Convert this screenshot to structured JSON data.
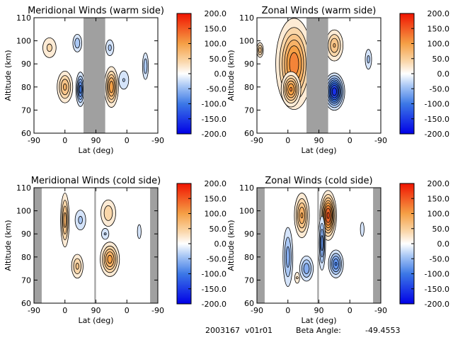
{
  "footer": {
    "id_text": "2003167  v01r01",
    "beta_label": "Beta Angle:",
    "beta_value": "-49.4553"
  },
  "chart_data": [
    {
      "type": "contour",
      "title": "Meridional Winds (warm side)",
      "xlabel": "Lat (deg)",
      "ylabel": "Altitude (km)",
      "x_ticks": [
        "-90",
        "0",
        "90",
        "0",
        "-90"
      ],
      "y_ticks": [
        "60",
        "70",
        "80",
        "90",
        "100",
        "110"
      ],
      "ylim": [
        60,
        110
      ],
      "gap": {
        "from_tick": 1.6,
        "to_tick": 2.3
      },
      "edge_gaps": [],
      "colorbar": {
        "min": -200,
        "max": 200,
        "ticks": [
          "200.0",
          "150.0",
          "100.0",
          "50.0",
          "0.0",
          "-50.0",
          "-100.0",
          "-150.0",
          "-200.0"
        ]
      },
      "cells": [
        {
          "x_tick": 0.5,
          "alt": 97,
          "amp": 45,
          "wx": 0.25,
          "wy": 5
        },
        {
          "x_tick": 1.0,
          "alt": 80,
          "amp": 85,
          "wx": 0.22,
          "wy": 6
        },
        {
          "x_tick": 1.5,
          "alt": 79,
          "amp": -110,
          "wx": 0.12,
          "wy": 6
        },
        {
          "x_tick": 1.4,
          "alt": 99,
          "amp": -55,
          "wx": 0.15,
          "wy": 4
        },
        {
          "x_tick": 2.5,
          "alt": 80,
          "amp": 115,
          "wx": 0.18,
          "wy": 7
        },
        {
          "x_tick": 2.45,
          "alt": 97,
          "amp": -45,
          "wx": 0.15,
          "wy": 4
        },
        {
          "x_tick": 2.9,
          "alt": 83,
          "amp": -40,
          "wx": 0.2,
          "wy": 5
        },
        {
          "x_tick": 3.6,
          "alt": 89,
          "amp": -55,
          "wx": 0.1,
          "wy": 6
        }
      ]
    },
    {
      "type": "contour",
      "title": "Zonal Winds (warm side)",
      "xlabel": "Lat (deg)",
      "ylabel": "Altitude (km)",
      "x_ticks": [
        "-90",
        "0",
        "90",
        "0",
        "-90"
      ],
      "y_ticks": [
        "60",
        "70",
        "80",
        "90",
        "100",
        "110"
      ],
      "ylim": [
        60,
        110
      ],
      "gap": {
        "from_tick": 1.6,
        "to_tick": 2.3
      },
      "edge_gaps": [],
      "colorbar": {
        "min": -200,
        "max": 200,
        "ticks": [
          "200.0",
          "150.0",
          "100.0",
          "50.0",
          "0.0",
          "-50.0",
          "-100.0",
          "-150.0",
          "-200.0"
        ]
      },
      "cells": [
        {
          "x_tick": 1.2,
          "alt": 90,
          "amp": 135,
          "wx": 0.45,
          "wy": 15
        },
        {
          "x_tick": 1.1,
          "alt": 79,
          "amp": 120,
          "wx": 0.25,
          "wy": 6
        },
        {
          "x_tick": 2.5,
          "alt": 78,
          "amp": -175,
          "wx": 0.25,
          "wy": 6
        },
        {
          "x_tick": 2.5,
          "alt": 98,
          "amp": 80,
          "wx": 0.25,
          "wy": 6
        },
        {
          "x_tick": 0.1,
          "alt": 96,
          "amp": 70,
          "wx": 0.1,
          "wy": 3
        },
        {
          "x_tick": 3.6,
          "alt": 92,
          "amp": -45,
          "wx": 0.12,
          "wy": 5
        }
      ]
    },
    {
      "type": "contour",
      "title": "Meridional Winds (cold side)",
      "xlabel": "Lat (deg)",
      "ylabel": "Altitude (km)",
      "x_ticks": [
        "-90",
        "0",
        "90",
        "0",
        "-90"
      ],
      "y_ticks": [
        "60",
        "70",
        "80",
        "90",
        "100",
        "110"
      ],
      "ylim": [
        60,
        110
      ],
      "gap": {
        "from_tick": 1.95,
        "to_tick": 2.0
      },
      "edge_gaps": [
        [
          0,
          0.25
        ],
        [
          3.75,
          4
        ]
      ],
      "colorbar": {
        "min": -200,
        "max": 200,
        "ticks": [
          "200.0",
          "150.0",
          "100.0",
          "50.0",
          "0.0",
          "-50.0",
          "-100.0",
          "-150.0",
          "-200.0"
        ]
      },
      "cells": [
        {
          "x_tick": 1.0,
          "alt": 96,
          "amp": 90,
          "wx": 0.12,
          "wy": 10
        },
        {
          "x_tick": 1.5,
          "alt": 96,
          "amp": -45,
          "wx": 0.2,
          "wy": 5
        },
        {
          "x_tick": 1.4,
          "alt": 76,
          "amp": 65,
          "wx": 0.18,
          "wy": 5
        },
        {
          "x_tick": 2.4,
          "alt": 99,
          "amp": 55,
          "wx": 0.25,
          "wy": 6
        },
        {
          "x_tick": 2.45,
          "alt": 79,
          "amp": 110,
          "wx": 0.25,
          "wy": 6
        },
        {
          "x_tick": 2.3,
          "alt": 90,
          "amp": -40,
          "wx": 0.15,
          "wy": 3
        },
        {
          "x_tick": 3.4,
          "alt": 91,
          "amp": -30,
          "wx": 0.1,
          "wy": 5
        }
      ]
    },
    {
      "type": "contour",
      "title": "Zonal Winds (cold side)",
      "xlabel": "Lat (deg)",
      "ylabel": "Altitude (km)",
      "x_ticks": [
        "-90",
        "0",
        "90",
        "0",
        "-90"
      ],
      "y_ticks": [
        "60",
        "70",
        "80",
        "90",
        "100",
        "110"
      ],
      "ylim": [
        60,
        110
      ],
      "gap": {
        "from_tick": 1.95,
        "to_tick": 2.0
      },
      "edge_gaps": [
        [
          0,
          0.25
        ],
        [
          3.75,
          4
        ]
      ],
      "colorbar": {
        "min": -200,
        "max": 200,
        "ticks": [
          "200.0",
          "150.0",
          "100.0",
          "50.0",
          "0.0",
          "-50.0",
          "-100.0",
          "-150.0",
          "-200.0"
        ]
      },
      "cells": [
        {
          "x_tick": 1.45,
          "alt": 98,
          "amp": 100,
          "wx": 0.2,
          "wy": 8
        },
        {
          "x_tick": 1.0,
          "alt": 80,
          "amp": -70,
          "wx": 0.15,
          "wy": 12
        },
        {
          "x_tick": 1.6,
          "alt": 75,
          "amp": -75,
          "wx": 0.2,
          "wy": 5
        },
        {
          "x_tick": 1.3,
          "alt": 71,
          "amp": 40,
          "wx": 0.1,
          "wy": 3
        },
        {
          "x_tick": 2.3,
          "alt": 98,
          "amp": 165,
          "wx": 0.2,
          "wy": 8
        },
        {
          "x_tick": 2.55,
          "alt": 77,
          "amp": -100,
          "wx": 0.2,
          "wy": 5
        },
        {
          "x_tick": 2.1,
          "alt": 86,
          "amp": -90,
          "wx": 0.1,
          "wy": 10
        },
        {
          "x_tick": 3.4,
          "alt": 92,
          "amp": -30,
          "wx": 0.1,
          "wy": 5
        }
      ]
    }
  ]
}
